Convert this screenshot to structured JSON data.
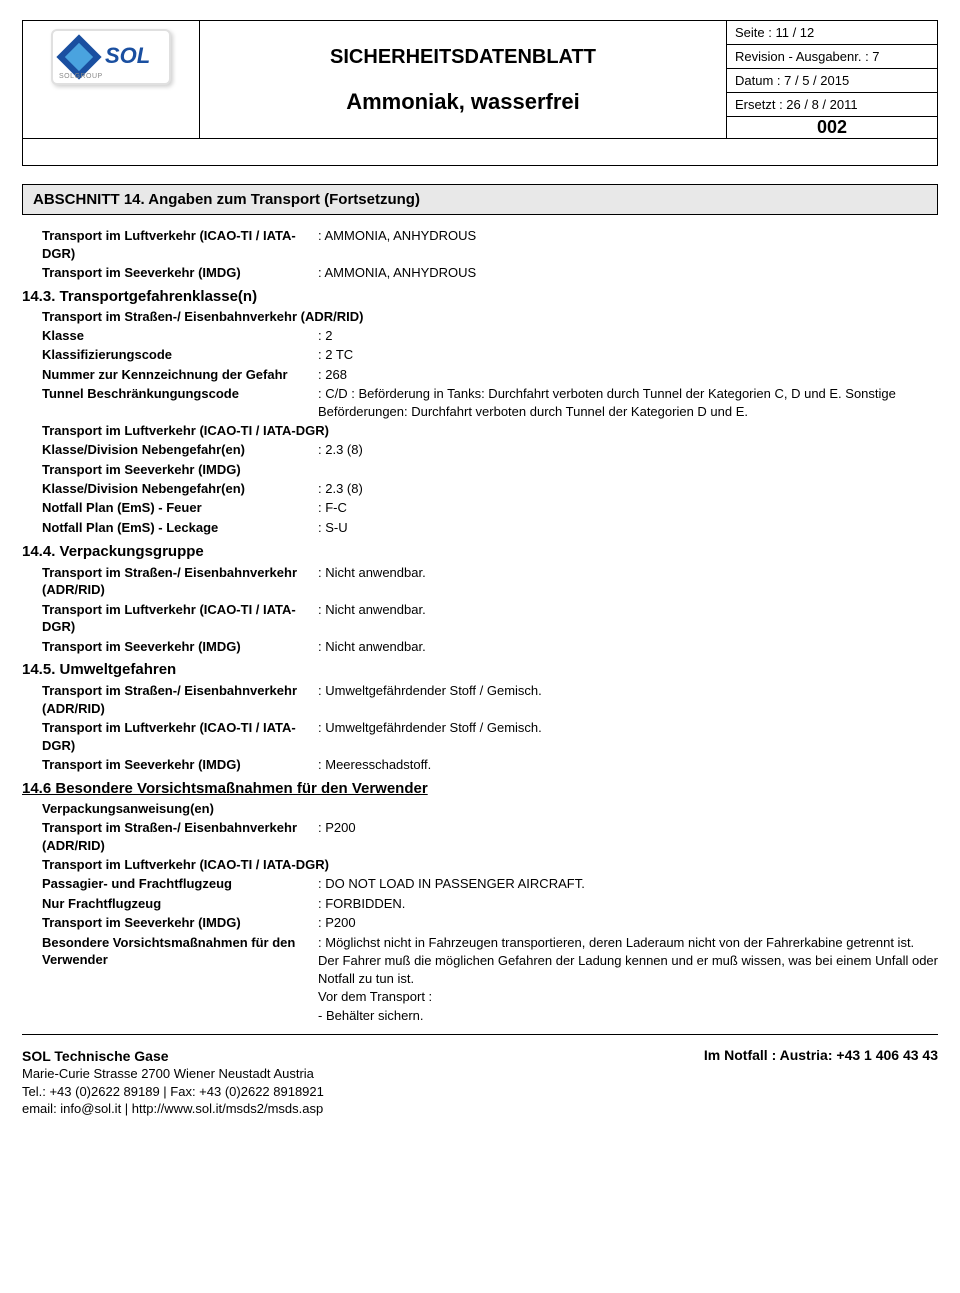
{
  "header": {
    "logo_text": "SOL",
    "logo_sub": "SOLGROUP",
    "doc_title": "SICHERHEITSDATENBLATT",
    "product": "Ammoniak, wasserfrei",
    "meta": {
      "page": "Seite : 11 / 12",
      "revision": "Revision - Ausgabenr. : 7",
      "date": "Datum : 7 / 5 / 2015",
      "replaces": "Ersetzt : 26 / 8 / 2011"
    },
    "code": "002"
  },
  "section_title": "ABSCHNITT 14.  Angaben zum Transport  (Fortsetzung)",
  "s14_top": {
    "air_label": "Transport im Luftverkehr (ICAO-TI / IATA-DGR)",
    "air_value": "AMMONIA, ANHYDROUS",
    "sea_label": "Transport im Seeverkehr (IMDG)",
    "sea_value": "AMMONIA, ANHYDROUS"
  },
  "s14_3": {
    "heading": "14.3.  Transportgefahrenklasse(n)",
    "road_label": "Transport im Straßen-/ Eisenbahnverkehr (ADR/RID)",
    "class_label": "Klasse",
    "class_value": "2",
    "code_label": "Klassifizierungscode",
    "code_value": "2 TC",
    "num_label": "Nummer zur Kennzeichnung der Gefahr",
    "num_value": "268",
    "tunnel_label": "Tunnel Beschränkungungscode",
    "tunnel_value": "C/D  :  Beförderung in Tanks: Durchfahrt verboten durch Tunnel der Kategorien C, D und E. Sonstige Beförderungen: Durchfahrt verboten durch Tunnel der Kategorien D und E.",
    "air_label": "Transport im Luftverkehr (ICAO-TI / IATA-DGR)",
    "air_class_label": "Klasse/Division Nebengefahr(en)",
    "air_class_value": "2.3 (8)",
    "sea_label": "Transport im Seeverkehr (IMDG)",
    "sea_class_label": "Klasse/Division Nebengefahr(en)",
    "sea_class_value": "2.3 (8)",
    "ems_fire_label": "Notfall Plan (EmS) - Feuer",
    "ems_fire_value": "F-C",
    "ems_leak_label": "Notfall Plan (EmS) - Leckage",
    "ems_leak_value": "S-U"
  },
  "s14_4": {
    "heading": "14.4.  Verpackungsgruppe",
    "road_label": "Transport im Straßen-/ Eisenbahnverkehr (ADR/RID)",
    "road_value": "Nicht anwendbar.",
    "air_label": "Transport im Luftverkehr (ICAO-TI / IATA-DGR)",
    "air_value": "Nicht anwendbar.",
    "sea_label": "Transport im Seeverkehr (IMDG)",
    "sea_value": "Nicht anwendbar."
  },
  "s14_5": {
    "heading": "14.5.  Umweltgefahren",
    "road_label": "Transport im Straßen-/ Eisenbahnverkehr (ADR/RID)",
    "road_value": "Umweltgefährdender Stoff / Gemisch.",
    "air_label": "Transport im Luftverkehr (ICAO-TI / IATA-DGR)",
    "air_value": "Umweltgefährdender Stoff / Gemisch.",
    "sea_label": "Transport im Seeverkehr (IMDG)",
    "sea_value": "Meeresschadstoff."
  },
  "s14_6": {
    "heading": "14.6  Besondere Vorsichtsmaßnahmen für den Verwender",
    "pack_label": "Verpackungsanweisung(en)",
    "road_label": "Transport im Straßen-/ Eisenbahnverkehr (ADR/RID)",
    "road_value": "P200",
    "air_label": "Transport im Luftverkehr (ICAO-TI / IATA-DGR)",
    "pass_label": "Passagier- und Frachtflugzeug",
    "pass_value": "DO NOT LOAD IN PASSENGER AIRCRAFT.",
    "cargo_label": "Nur Frachtflugzeug",
    "cargo_value": "FORBIDDEN.",
    "sea_label": "Transport im Seeverkehr (IMDG)",
    "sea_value": "P200",
    "prec_label": "Besondere Vorsichtsmaßnahmen für den Verwender",
    "prec_lines": [
      "Möglichst nicht in Fahrzeugen transportieren, deren Laderaum nicht von der Fahrerkabine getrennt ist.",
      "Der Fahrer muß die möglichen Gefahren der Ladung kennen und er muß wissen, was bei einem Unfall oder Notfall zu tun ist.",
      "Vor dem Transport  :",
      "- Behälter sichern."
    ]
  },
  "footer": {
    "company": "SOL Technische Gase",
    "addr": "Marie-Curie Strasse  2700  Wiener Neustadt  Austria",
    "tel": "Tel.: +43 (0)2622 89189 | Fax: +43 (0)2622 8918921",
    "email": "email: info@sol.it | http://www.sol.it/msds2/msds.asp",
    "emergency": "Im Notfall : Austria:   +43 1 406 43 43"
  }
}
